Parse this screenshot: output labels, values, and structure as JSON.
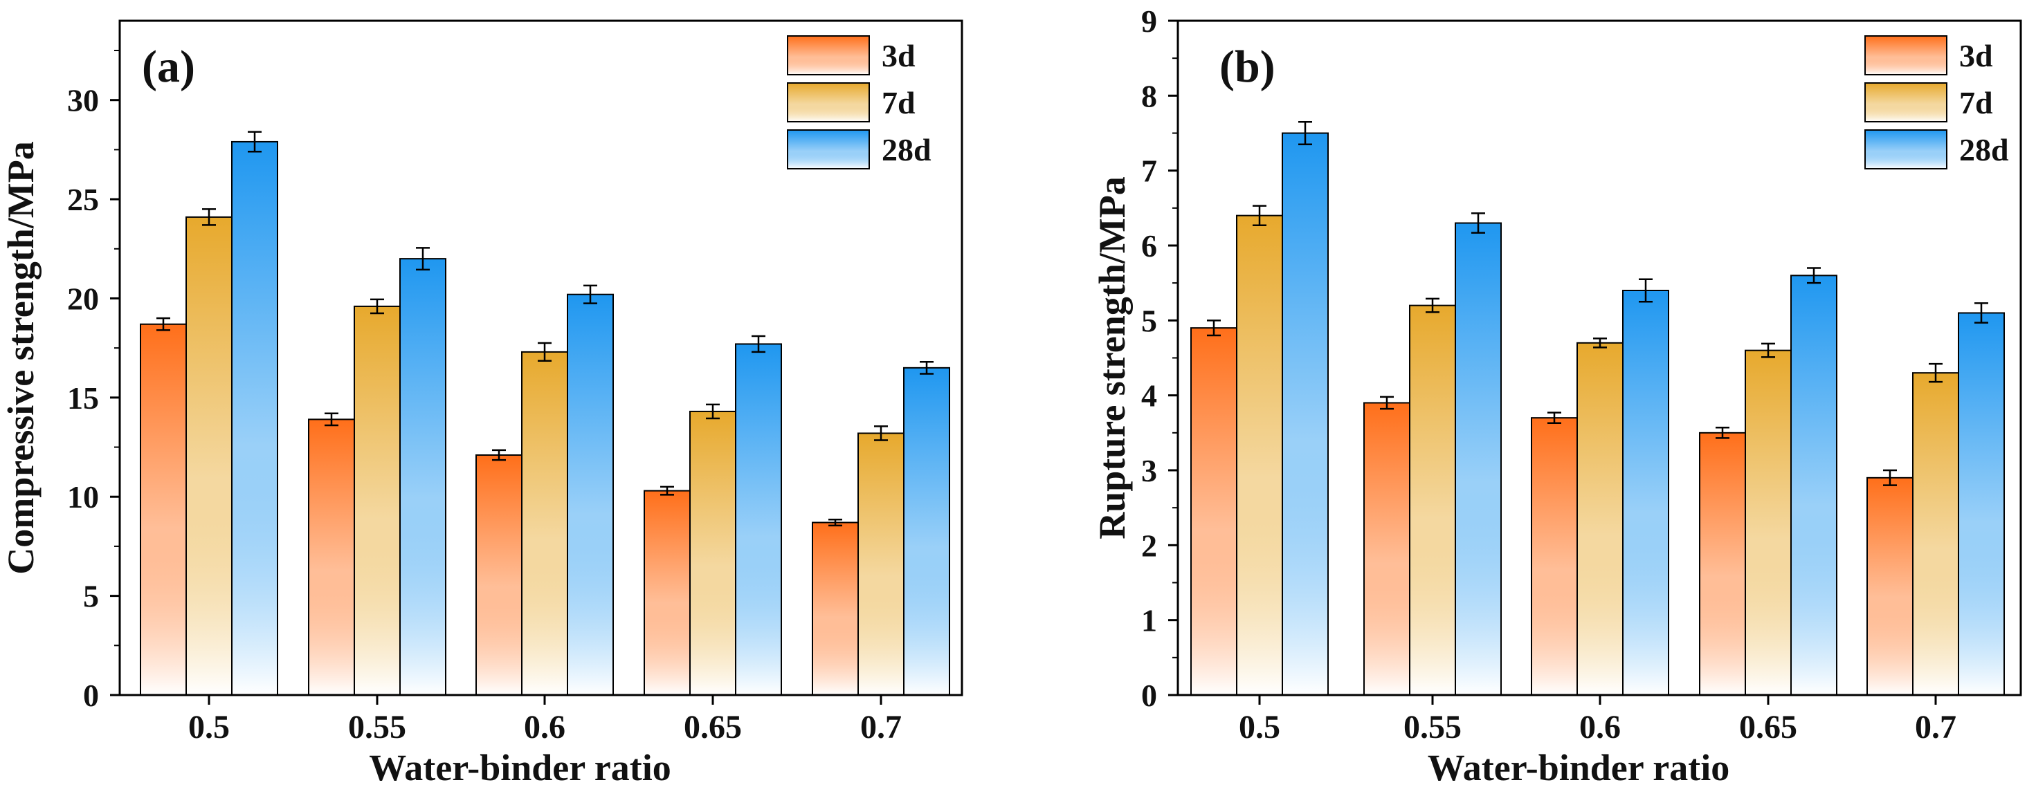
{
  "figure": {
    "colors": {
      "3d": "#ff6f1a",
      "7d": "#e7a92d",
      "28d": "#1f97f0",
      "axis": "#000000"
    }
  },
  "chart_data": [
    {
      "type": "bar",
      "panel_label": "(a)",
      "title": "",
      "xlabel": "Water-binder ratio",
      "ylabel": "Compressive strength/MPa",
      "ylim": [
        0,
        34
      ],
      "yticks": [
        "0",
        "5",
        "10",
        "15",
        "20",
        "25",
        "30"
      ],
      "categories": [
        "0.5",
        "0.55",
        "0.6",
        "0.65",
        "0.7"
      ],
      "legend_position": "top-right",
      "series": [
        {
          "name": "3d",
          "values": [
            18.7,
            13.9,
            12.1,
            10.3,
            8.7
          ],
          "errors": [
            0.3,
            0.3,
            0.25,
            0.2,
            0.15
          ]
        },
        {
          "name": "7d",
          "values": [
            24.1,
            19.6,
            17.3,
            14.3,
            13.2
          ],
          "errors": [
            0.4,
            0.35,
            0.45,
            0.35,
            0.35
          ]
        },
        {
          "name": "28d",
          "values": [
            27.9,
            22.0,
            20.2,
            17.7,
            16.5
          ],
          "errors": [
            0.5,
            0.55,
            0.45,
            0.4,
            0.3
          ]
        }
      ]
    },
    {
      "type": "bar",
      "panel_label": "(b)",
      "title": "",
      "xlabel": "Water-binder ratio",
      "ylabel": "Rupture strength/MPa",
      "ylim": [
        0,
        9
      ],
      "yticks": [
        "0",
        "1",
        "2",
        "3",
        "4",
        "5",
        "6",
        "7",
        "8",
        "9"
      ],
      "categories": [
        "0.5",
        "0.55",
        "0.6",
        "0.65",
        "0.7"
      ],
      "legend_position": "top-right",
      "series": [
        {
          "name": "3d",
          "values": [
            4.9,
            3.9,
            3.7,
            3.5,
            2.9
          ],
          "errors": [
            0.1,
            0.08,
            0.07,
            0.07,
            0.1
          ]
        },
        {
          "name": "7d",
          "values": [
            6.4,
            5.2,
            4.7,
            4.6,
            4.3
          ],
          "errors": [
            0.13,
            0.09,
            0.06,
            0.09,
            0.12
          ]
        },
        {
          "name": "28d",
          "values": [
            7.5,
            6.3,
            5.4,
            5.6,
            5.1
          ],
          "errors": [
            0.15,
            0.13,
            0.15,
            0.1,
            0.13
          ]
        }
      ]
    }
  ]
}
